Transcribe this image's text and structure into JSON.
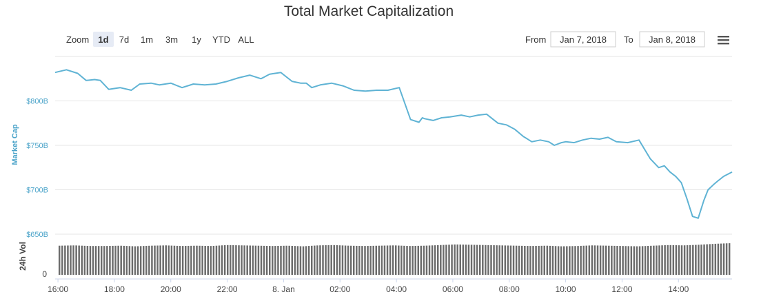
{
  "chart_data": {
    "type": "line",
    "title": "Total Market Capitalization",
    "ylabel": "Market Cap",
    "volume_label": "24h Vol",
    "y_ticks": [
      "$650B",
      "$700B",
      "$750B",
      "$800B"
    ],
    "y_tick_values": [
      650,
      700,
      750,
      800
    ],
    "ylim": [
      650,
      850
    ],
    "volume_zero_label": "0",
    "x_ticks": [
      "16:00",
      "18:00",
      "20:00",
      "22:00",
      "8. Jan",
      "02:00",
      "04:00",
      "06:00",
      "08:00",
      "10:00",
      "12:00",
      "14:00"
    ],
    "x_tick_hours": [
      16,
      18,
      20,
      22,
      24,
      26,
      28,
      30,
      32,
      34,
      36,
      38
    ],
    "xlim_hours": [
      15.9,
      39.9
    ],
    "grid": true,
    "legend": "none",
    "series": [
      {
        "values_x_hours": [
          15.9,
          16.3,
          16.7,
          17.0,
          17.3,
          17.5,
          17.8,
          18.2,
          18.6,
          18.9,
          19.3,
          19.6,
          20.0,
          20.4,
          20.8,
          21.2,
          21.6,
          22.0,
          22.4,
          22.8,
          23.2,
          23.5,
          23.9,
          24.3,
          24.6,
          24.8,
          25.0,
          25.3,
          25.7,
          26.1,
          26.5,
          26.9,
          27.3,
          27.7,
          28.1,
          28.5,
          28.8,
          28.92,
          29.0,
          29.3,
          29.6,
          29.9,
          30.3,
          30.6,
          30.9,
          31.2,
          31.6,
          31.9,
          32.2,
          32.5,
          32.8,
          33.1,
          33.4,
          33.6,
          33.85,
          34.0,
          34.3,
          34.6,
          34.9,
          35.2,
          35.5,
          35.8,
          36.2,
          36.6,
          37.0,
          37.3,
          37.5,
          37.7,
          37.9,
          38.1,
          38.3,
          38.5,
          38.7,
          38.9,
          39.05,
          39.25,
          39.4,
          39.6,
          39.9
        ],
        "values_y": [
          832,
          835,
          831,
          823,
          824,
          823,
          813,
          815,
          812,
          819,
          820,
          818,
          820,
          815,
          819,
          818,
          819,
          822,
          826,
          829,
          825,
          830,
          832,
          822,
          820,
          820,
          815,
          818,
          820,
          817,
          812,
          811,
          812,
          812,
          815,
          779,
          776,
          781,
          780,
          778,
          781,
          782,
          784,
          782,
          784,
          785,
          775,
          773,
          768,
          760,
          754,
          756,
          754,
          750,
          753,
          754,
          753,
          756,
          758,
          757,
          759,
          754,
          753,
          756,
          735,
          725,
          727,
          720,
          715,
          708,
          690,
          670,
          668,
          688,
          700,
          706,
          710,
          715,
          720
        ]
      }
    ],
    "volume_values_b": [
      9.4,
      9.5,
      9.3,
      9.3,
      9.4,
      9.2,
      9.4,
      9.5,
      9.3,
      9.4,
      9.3,
      9.6,
      9.5,
      9.4,
      9.3,
      9.4,
      9.2,
      9.5,
      9.6,
      9.4,
      9.3,
      9.4,
      9.5,
      9.3,
      9.4,
      9.6,
      9.8,
      9.7,
      9.6,
      9.5,
      9.4,
      9.3,
      9.4,
      9.2,
      9.3,
      9.5,
      9.4,
      9.3,
      9.2,
      9.4,
      9.6,
      9.5,
      9.7,
      10.0,
      10.2
    ],
    "volume_ylim_b": [
      0,
      12
    ]
  },
  "toolbar": {
    "zoom_label": "Zoom",
    "zoom_buttons": [
      "1d",
      "7d",
      "1m",
      "3m",
      "1y",
      "YTD",
      "ALL"
    ],
    "active_zoom": "1d",
    "from_label": "From",
    "from_value": "Jan 7, 2018",
    "to_label": "To",
    "to_value": "Jan 8, 2018",
    "menu_icon": "hamburger-menu-icon"
  },
  "colors": {
    "line": "#5fb3d4",
    "volume": "#6b6b6b",
    "grid": "#e6e6e6",
    "axis_label": "#4aa3c9",
    "active_button_bg": "#e6ebf5"
  }
}
